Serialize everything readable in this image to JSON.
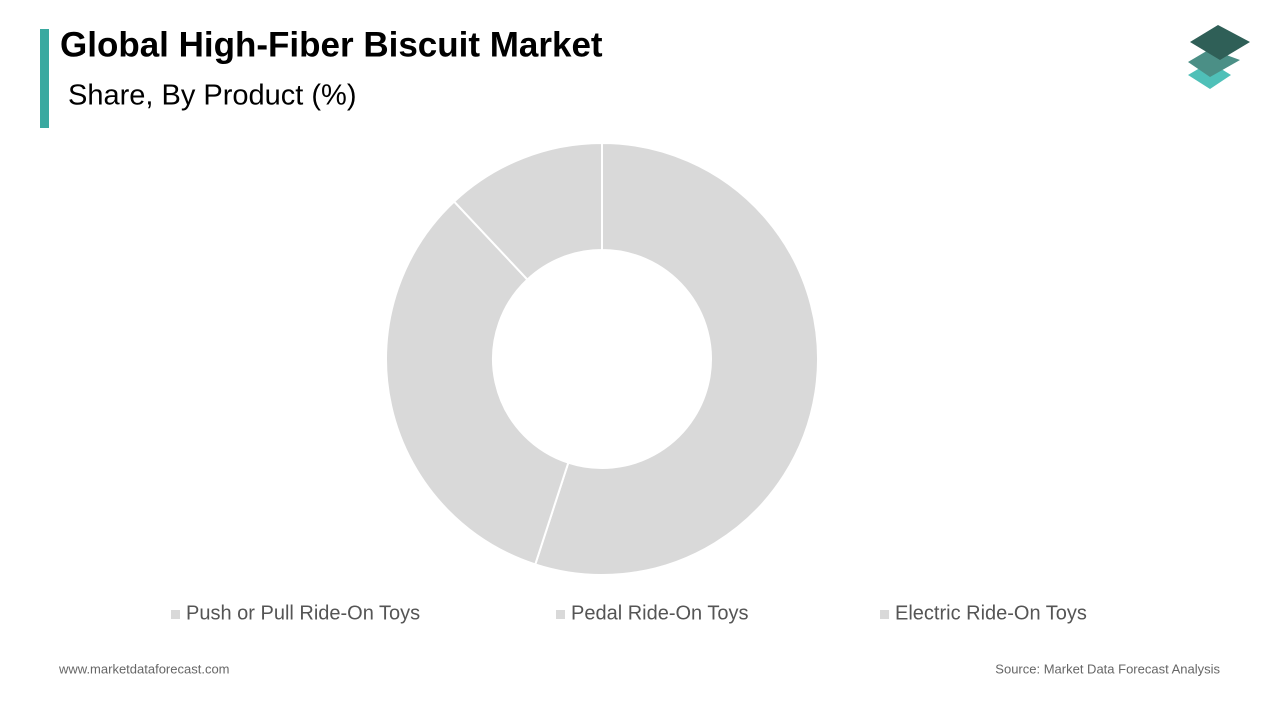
{
  "chart_data": {
    "type": "donut",
    "title": "Global High-Fiber Biscuit Market",
    "subtitle": "Share, By Product (%)",
    "categories": [
      "Push or Pull Ride-On Toys",
      "Pedal Ride-On Toys",
      "Electric Ride-On Toys"
    ],
    "values": [
      55,
      33,
      12
    ],
    "colors": [
      "#d9d9d9",
      "#d9d9d9",
      "#d9d9d9"
    ],
    "legend_position": "bottom"
  },
  "footer": {
    "website": "www.marketdataforecast.com",
    "source": "Source: Market Data Forecast Analysis"
  }
}
